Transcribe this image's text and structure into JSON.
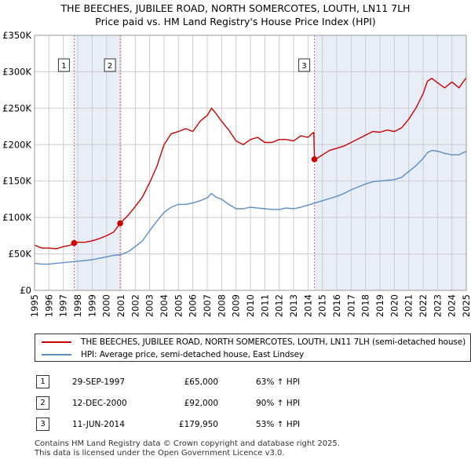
{
  "title_line1": "THE BEECHES, JUBILEE ROAD, NORTH SOMERCOTES, LOUTH, LN11 7LH",
  "title_line2": "Price paid vs. HM Land Registry's House Price Index (HPI)",
  "colors": {
    "property": "#cc0000",
    "hpi": "#5b8ec4",
    "shade": "#e8eef8",
    "grid": "#cccccc",
    "marker_line": "#dd6666"
  },
  "legend": {
    "property_label": "THE BEECHES, JUBILEE ROAD, NORTH SOMERCOTES, LOUTH, LN11 7LH (semi-detached house)",
    "hpi_label": "HPI: Average price, semi-detached house, East Lindsey"
  },
  "transactions": [
    {
      "num": "1",
      "date": "29-SEP-1997",
      "price": "£65,000",
      "hpi": "63% ↑ HPI"
    },
    {
      "num": "2",
      "date": "12-DEC-2000",
      "price": "£92,000",
      "hpi": "90% ↑ HPI"
    },
    {
      "num": "3",
      "date": "11-JUN-2014",
      "price": "£179,950",
      "hpi": "53% ↑ HPI"
    }
  ],
  "footer_line1": "Contains HM Land Registry data © Crown copyright and database right 2025.",
  "footer_line2": "This data is licensed under the Open Government Licence v3.0.",
  "chart_data": {
    "type": "line",
    "title": "THE BEECHES, JUBILEE ROAD, NORTH SOMERCOTES, LOUTH, LN11 7LH — Price paid vs. HM Land Registry's House Price Index (HPI)",
    "xlabel": "",
    "ylabel": "",
    "xlim": [
      1995,
      2025
    ],
    "ylim": [
      0,
      350000
    ],
    "y_ticks": [
      0,
      50000,
      100000,
      150000,
      200000,
      250000,
      300000,
      350000
    ],
    "y_tick_labels": [
      "£0",
      "£50K",
      "£100K",
      "£150K",
      "£200K",
      "£250K",
      "£300K",
      "£350K"
    ],
    "x_ticks": [
      "1995",
      "1996",
      "1997",
      "1998",
      "1999",
      "2000",
      "2001",
      "2002",
      "2003",
      "2004",
      "2005",
      "2006",
      "2007",
      "2008",
      "2009",
      "2010",
      "2011",
      "2012",
      "2013",
      "2014",
      "2015",
      "2016",
      "2017",
      "2018",
      "2019",
      "2020",
      "2021",
      "2022",
      "2023",
      "2024",
      "2025"
    ],
    "grid": true,
    "shaded_ranges": [
      [
        1997.75,
        2000.95
      ],
      [
        2014.45,
        2025.0
      ]
    ],
    "sales": [
      {
        "label": "1",
        "x": 1997.75,
        "y": 65000
      },
      {
        "label": "2",
        "x": 2000.95,
        "y": 92000
      },
      {
        "label": "3",
        "x": 2014.45,
        "y": 179950
      }
    ],
    "series": [
      {
        "name": "THE BEECHES, JUBILEE ROAD, NORTH SOMERCOTES, LOUTH, LN11 7LH (semi-detached house)",
        "color": "#cc0000",
        "x": [
          1995.0,
          1995.5,
          1996.0,
          1996.5,
          1997.0,
          1997.5,
          1997.75,
          1998.0,
          1998.5,
          1999.0,
          1999.5,
          2000.0,
          2000.5,
          2000.95,
          2001.5,
          2002.0,
          2002.5,
          2003.0,
          2003.5,
          2004.0,
          2004.5,
          2005.0,
          2005.5,
          2006.0,
          2006.5,
          2007.0,
          2007.3,
          2007.6,
          2008.0,
          2008.5,
          2009.0,
          2009.5,
          2010.0,
          2010.5,
          2011.0,
          2011.5,
          2012.0,
          2012.5,
          2013.0,
          2013.5,
          2014.0,
          2014.4,
          2014.45,
          2014.7,
          2015.0,
          2015.5,
          2016.0,
          2016.5,
          2017.0,
          2017.5,
          2018.0,
          2018.5,
          2019.0,
          2019.5,
          2020.0,
          2020.5,
          2021.0,
          2021.5,
          2022.0,
          2022.3,
          2022.6,
          2023.0,
          2023.5,
          2024.0,
          2024.5,
          2025.0
        ],
        "y": [
          62000,
          58000,
          58000,
          57000,
          60000,
          62000,
          65000,
          66000,
          66000,
          68000,
          71000,
          75000,
          80000,
          92000,
          103000,
          115000,
          128000,
          148000,
          170000,
          200000,
          215000,
          218000,
          222000,
          218000,
          232000,
          240000,
          250000,
          243000,
          232000,
          220000,
          205000,
          200000,
          207000,
          210000,
          203000,
          203000,
          207000,
          207000,
          205000,
          212000,
          210000,
          217000,
          179950,
          182000,
          186000,
          192000,
          195000,
          198000,
          203000,
          208000,
          213000,
          218000,
          217000,
          220000,
          218000,
          223000,
          235000,
          250000,
          270000,
          287000,
          291000,
          285000,
          278000,
          286000,
          278000,
          292000
        ]
      },
      {
        "name": "HPI: Average price, semi-detached house, East Lindsey",
        "color": "#5b8ec4",
        "x": [
          1995.0,
          1995.5,
          1996.0,
          1996.5,
          1997.0,
          1997.5,
          1998.0,
          1998.5,
          1999.0,
          1999.5,
          2000.0,
          2000.5,
          2001.0,
          2001.5,
          2002.0,
          2002.5,
          2003.0,
          2003.5,
          2004.0,
          2004.5,
          2005.0,
          2005.5,
          2006.0,
          2006.5,
          2007.0,
          2007.3,
          2007.6,
          2008.0,
          2008.5,
          2009.0,
          2009.5,
          2010.0,
          2010.5,
          2011.0,
          2011.5,
          2012.0,
          2012.5,
          2013.0,
          2013.5,
          2014.0,
          2014.5,
          2015.0,
          2015.5,
          2016.0,
          2016.5,
          2017.0,
          2017.5,
          2018.0,
          2018.5,
          2019.0,
          2019.5,
          2020.0,
          2020.5,
          2021.0,
          2021.5,
          2022.0,
          2022.3,
          2022.6,
          2023.0,
          2023.5,
          2024.0,
          2024.5,
          2025.0
        ],
        "y": [
          37000,
          36000,
          36000,
          37000,
          38000,
          39000,
          40000,
          41000,
          42000,
          44000,
          46000,
          48000,
          49000,
          53000,
          60000,
          68000,
          82000,
          95000,
          107000,
          114000,
          118000,
          118000,
          120000,
          123000,
          127000,
          133000,
          128000,
          125000,
          118000,
          112000,
          112000,
          114000,
          113000,
          112000,
          111000,
          111000,
          113000,
          112000,
          114000,
          117000,
          120000,
          123000,
          126000,
          129000,
          133000,
          138000,
          142000,
          146000,
          149000,
          150000,
          151000,
          152000,
          155000,
          163000,
          171000,
          181000,
          189000,
          192000,
          191000,
          188000,
          186000,
          186000,
          191000
        ]
      }
    ]
  }
}
